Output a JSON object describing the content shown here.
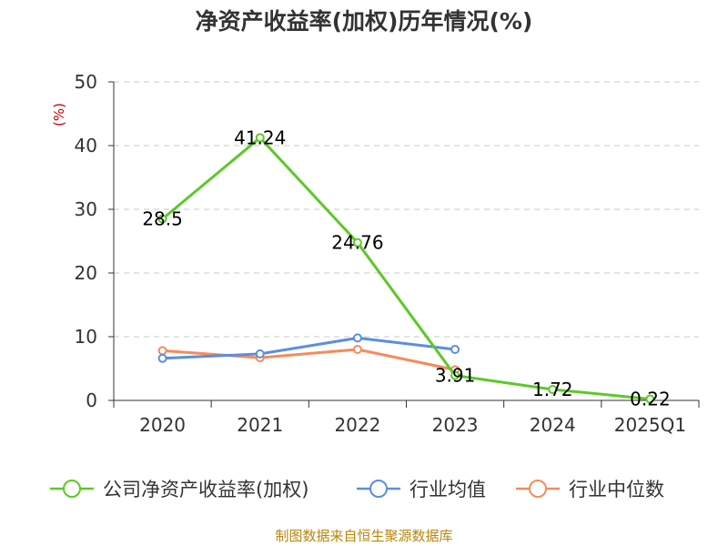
{
  "chart_data": {
    "type": "line",
    "title": "净资产收益率(加权)历年情况(%)",
    "ylabel": "(%)",
    "xlabel": "",
    "categories": [
      "2020",
      "2021",
      "2022",
      "2023",
      "2024",
      "2025Q1"
    ],
    "ylim": [
      0,
      50
    ],
    "yticks": [
      0,
      10,
      20,
      30,
      40,
      50
    ],
    "grid": true,
    "legend_position": "bottom",
    "series": [
      {
        "name": "公司净资产收益率(加权)",
        "color": "#5cc928",
        "values": [
          28.5,
          41.24,
          24.76,
          3.91,
          1.72,
          0.22
        ],
        "labels": [
          "28.5",
          "41.24",
          "24.76",
          "3.91",
          "1.72",
          "0.22"
        ]
      },
      {
        "name": "行业均值",
        "color": "#5a8ee0",
        "values": [
          6.6,
          7.3,
          9.8,
          8.0,
          null,
          null
        ]
      },
      {
        "name": "行业中位数",
        "color": "#f58b5b",
        "values": [
          7.8,
          6.7,
          8.0,
          4.8,
          null,
          null
        ]
      }
    ]
  },
  "footer": "制图数据来自恒生聚源数据库"
}
